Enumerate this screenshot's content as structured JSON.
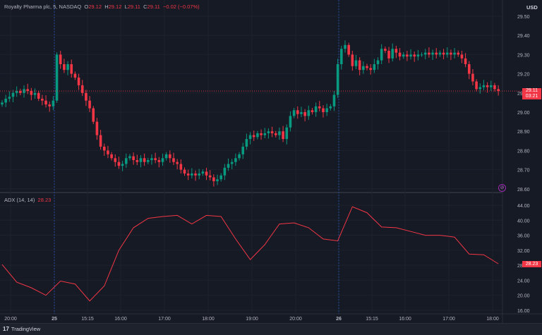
{
  "legend": {
    "symbol": "Royalty Pharma plc, 5, NASDAQ",
    "open_label": "O",
    "open": "29.12",
    "high_label": "H",
    "high": "29.12",
    "low_label": "L",
    "low": "29.11",
    "close_label": "C",
    "close": "29.11",
    "change": "−0.02 (−0.07%)"
  },
  "currency": "USD",
  "current_price": {
    "price": "29.11",
    "countdown": "03:21",
    "color": "#f23645"
  },
  "adx_legend": {
    "label": "ADX (14, 14)",
    "value": "28.23"
  },
  "footer": {
    "brand": "TradingView",
    "logo": "17"
  },
  "colors": {
    "up": "#089981",
    "down": "#f23645",
    "adx": "#f23645",
    "background": "#161a25",
    "session_break": "#2962ff"
  },
  "chart_data": [
    {
      "type": "candlestick",
      "title": "Royalty Pharma plc, 5, NASDAQ",
      "ylim": [
        28.6,
        29.5
      ],
      "y_ticks": [
        "29.50",
        "29.40",
        "29.30",
        "29.20",
        "29.10",
        "29.00",
        "28.90",
        "28.80",
        "28.70",
        "28.60"
      ],
      "x_ticks": [
        "20:00",
        "25",
        "15:15",
        "16:00",
        "17:00",
        "18:00",
        "19:00",
        "20:00",
        "26",
        "15:15",
        "16:00",
        "17:00",
        "18:00"
      ],
      "first_open": 29.04,
      "closes": [
        29.05,
        29.07,
        29.08,
        29.1,
        29.11,
        29.1,
        29.12,
        29.11,
        29.09,
        29.1,
        29.07,
        29.06,
        29.04,
        29.03,
        29.06,
        29.3,
        29.25,
        29.22,
        29.25,
        29.2,
        29.18,
        29.14,
        29.1,
        29.06,
        29.02,
        28.95,
        28.88,
        28.82,
        28.8,
        28.78,
        28.76,
        28.74,
        28.72,
        28.73,
        28.76,
        28.77,
        28.75,
        28.74,
        28.76,
        28.74,
        28.75,
        28.76,
        28.75,
        28.74,
        28.76,
        28.78,
        28.76,
        28.74,
        28.73,
        28.7,
        28.68,
        28.67,
        28.68,
        28.67,
        28.68,
        28.69,
        28.67,
        28.66,
        28.64,
        28.65,
        28.67,
        28.71,
        28.73,
        28.74,
        28.76,
        28.78,
        28.82,
        28.86,
        28.88,
        28.87,
        28.89,
        28.88,
        28.89,
        28.9,
        28.89,
        28.88,
        28.9,
        28.86,
        28.92,
        28.98,
        29.01,
        28.99,
        29.0,
        28.98,
        29.01,
        29.0,
        29.03,
        29.02,
        29.0,
        29.02,
        29.03,
        29.09,
        29.25,
        29.33,
        29.35,
        29.3,
        29.24,
        29.27,
        29.22,
        29.24,
        29.23,
        29.22,
        29.25,
        29.27,
        29.33,
        29.32,
        29.28,
        29.33,
        29.31,
        29.29,
        29.3,
        29.29,
        29.3,
        29.29,
        29.3,
        29.3,
        29.31,
        29.3,
        29.31,
        29.3,
        29.31,
        29.3,
        29.31,
        29.3,
        29.31,
        29.3,
        29.28,
        29.25,
        29.2,
        29.16,
        29.12,
        29.13,
        29.14,
        29.13,
        29.14,
        29.12,
        29.11
      ]
    },
    {
      "type": "line",
      "title": "ADX (14, 14)",
      "ylim": [
        14,
        46
      ],
      "y_ticks": [
        "44.00",
        "40.00",
        "36.00",
        "32.00",
        "28.00",
        "24.00",
        "20.00",
        "16.00"
      ],
      "sample_every_bars": 4,
      "values": [
        28.2,
        23.5,
        22,
        20,
        23.8,
        23,
        18.5,
        22.5,
        32,
        38,
        40.5,
        41,
        41.3,
        39,
        41.3,
        41,
        35,
        29.5,
        33.5,
        39,
        39.3,
        38,
        35,
        34.5,
        43.6,
        42,
        38.2,
        38,
        37,
        36,
        36,
        35.5,
        31,
        30.8,
        28.4
      ]
    }
  ]
}
